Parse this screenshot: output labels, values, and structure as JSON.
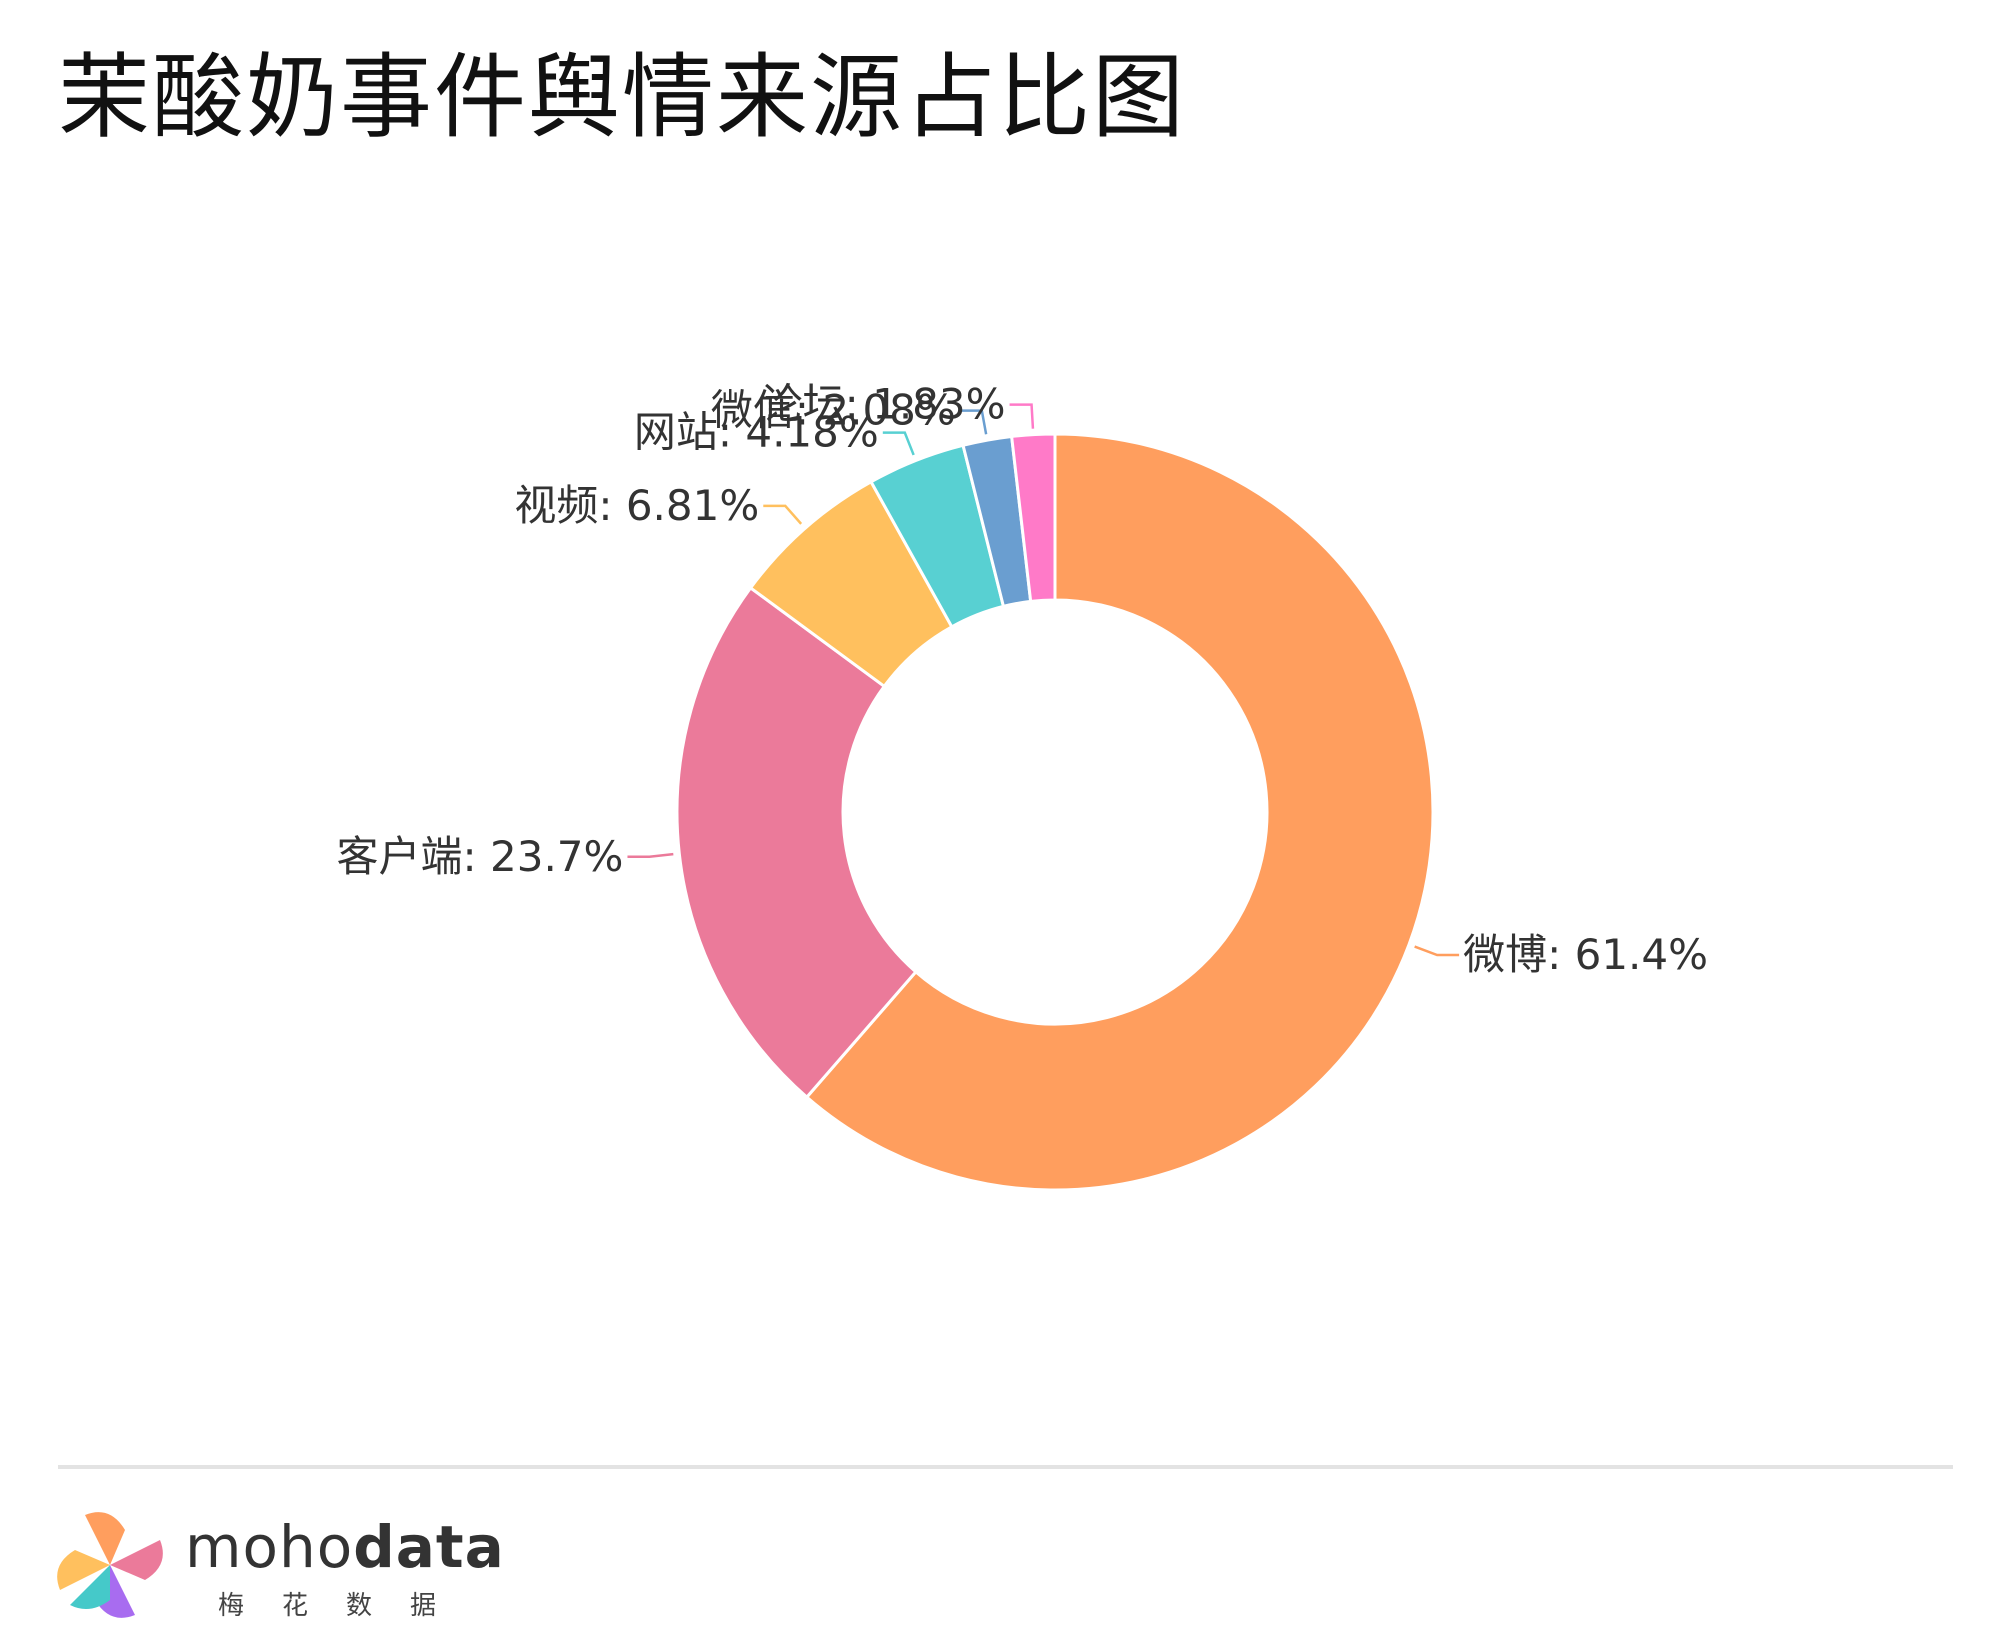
{
  "title": "茉酸奶事件舆情来源占比图",
  "chart_data": {
    "type": "pie",
    "donut": true,
    "slices": [
      {
        "name": "微博",
        "value": 61.4,
        "label": "微博: 61.4%",
        "color": "#FF9E5E"
      },
      {
        "name": "客户端",
        "value": 23.7,
        "label": "客户端: 23.7%",
        "color": "#EB7A9A"
      },
      {
        "name": "视频",
        "value": 6.81,
        "label": "视频: 6.81%",
        "color": "#FFC05E"
      },
      {
        "name": "网站",
        "value": 4.18,
        "label": "网站: 4.18%",
        "color": "#58D0D2"
      },
      {
        "name": "微信",
        "value": 2.08,
        "label": "微信: 2.08%",
        "color": "#6A9ED0"
      },
      {
        "name": "论坛",
        "value": 1.83,
        "label": "论坛: 1.83%",
        "color": "#FF7AC8"
      }
    ]
  },
  "footer": {
    "brand_light": "moho",
    "brand_bold": "data",
    "brand_sub": "梅花数据"
  }
}
